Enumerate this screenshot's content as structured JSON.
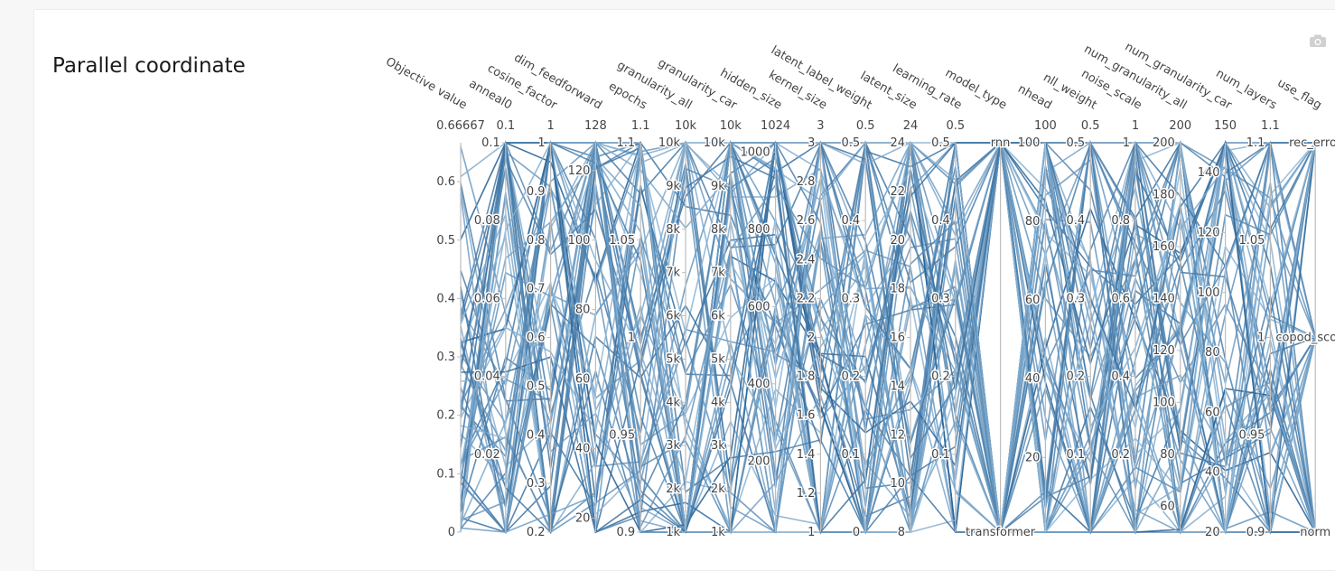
{
  "title": "Parallel coordinate",
  "toolbar": {
    "camera_icon": "camera-icon"
  },
  "colors": {
    "line_light": "#8fb8d8",
    "line_dark": "#1f5a8f",
    "axis": "#bdbdbd",
    "text": "#444444"
  },
  "chart_data": {
    "type": "parallel_coordinates",
    "title": "Parallel coordinate",
    "axes": [
      {
        "name": "Objective value",
        "max_label": "0.66667",
        "range": [
          0,
          0.66667
        ],
        "ticks": [
          0,
          0.1,
          0.2,
          0.3,
          0.4,
          0.5,
          0.6
        ]
      },
      {
        "name": "anneal0",
        "max_label": "0.1",
        "range": [
          0,
          0.1
        ],
        "ticks": [
          0.02,
          0.04,
          0.06,
          0.08,
          0.1
        ]
      },
      {
        "name": "cosine_factor",
        "max_label": "1",
        "range": [
          0.2,
          1
        ],
        "ticks": [
          0.2,
          0.3,
          0.4,
          0.5,
          0.6,
          0.7,
          0.8,
          0.9,
          1
        ]
      },
      {
        "name": "dim_feedforward",
        "max_label": "128",
        "range": [
          16,
          128
        ],
        "ticks": [
          20,
          40,
          60,
          80,
          100,
          120
        ]
      },
      {
        "name": "epochs",
        "max_label": "1.1",
        "range": [
          0.9,
          1.1
        ],
        "ticks": [
          0.9,
          0.95,
          1,
          1.05,
          1.1
        ]
      },
      {
        "name": "granularity_all",
        "max_label": "10k",
        "range": [
          1000,
          10000
        ],
        "ticks": [
          1000,
          2000,
          3000,
          4000,
          5000,
          6000,
          7000,
          8000,
          9000,
          10000
        ],
        "tick_labels": [
          "1k",
          "2k",
          "3k",
          "4k",
          "5k",
          "6k",
          "7k",
          "8k",
          "9k",
          "10k"
        ]
      },
      {
        "name": "granularity_car",
        "max_label": "10k",
        "range": [
          1000,
          10000
        ],
        "ticks": [
          1000,
          2000,
          3000,
          4000,
          5000,
          6000,
          7000,
          8000,
          9000,
          10000
        ],
        "tick_labels": [
          "1k",
          "2k",
          "3k",
          "4k",
          "5k",
          "6k",
          "7k",
          "8k",
          "9k",
          "10k"
        ]
      },
      {
        "name": "hidden_size",
        "max_label": "1024",
        "range": [
          16,
          1024
        ],
        "ticks": [
          200,
          400,
          600,
          800,
          1000
        ]
      },
      {
        "name": "kernel_size",
        "max_label": "3",
        "range": [
          1,
          3
        ],
        "ticks": [
          1,
          1.2,
          1.4,
          1.6,
          1.8,
          2,
          2.2,
          2.4,
          2.6,
          2.8,
          3
        ]
      },
      {
        "name": "latent_label_weight",
        "max_label": "0.5",
        "range": [
          0,
          0.5
        ],
        "ticks": [
          0,
          0.1,
          0.2,
          0.3,
          0.4,
          0.5
        ]
      },
      {
        "name": "latent_size",
        "max_label": "24",
        "range": [
          8,
          24
        ],
        "ticks": [
          8,
          10,
          12,
          14,
          16,
          18,
          20,
          22,
          24
        ]
      },
      {
        "name": "learning_rate",
        "max_label": "0.5",
        "range": [
          0,
          0.5
        ],
        "ticks": [
          0.1,
          0.2,
          0.3,
          0.4,
          0.5
        ]
      },
      {
        "name": "model_type",
        "max_label": "",
        "categorical": true,
        "categories": [
          "transformer",
          "rnn"
        ]
      },
      {
        "name": "nhead",
        "max_label": "100",
        "range": [
          1,
          100
        ],
        "ticks": [
          20,
          40,
          60,
          80,
          100
        ]
      },
      {
        "name": "nll_weight",
        "max_label": "0.5",
        "range": [
          0,
          0.5
        ],
        "ticks": [
          0.1,
          0.2,
          0.3,
          0.4,
          0.5
        ]
      },
      {
        "name": "noise_scale",
        "max_label": "1",
        "range": [
          0,
          1
        ],
        "ticks": [
          0.2,
          0.4,
          0.6,
          0.8,
          1
        ]
      },
      {
        "name": "num_granularity_all",
        "max_label": "200",
        "range": [
          50,
          200
        ],
        "ticks": [
          60,
          80,
          100,
          120,
          140,
          160,
          180,
          200
        ]
      },
      {
        "name": "num_granularity_car",
        "max_label": "150",
        "range": [
          20,
          150
        ],
        "ticks": [
          20,
          40,
          60,
          80,
          100,
          120,
          140
        ]
      },
      {
        "name": "num_layers",
        "max_label": "1.1",
        "range": [
          0.9,
          1.1
        ],
        "ticks": [
          0.9,
          0.95,
          1,
          1.05,
          1.1
        ],
        "tick_labels": [
          "0.9",
          "0.95",
          "1",
          "1.05",
          "1.1"
        ]
      },
      {
        "name": "use_flag",
        "max_label": "",
        "categorical": true,
        "categories": [
          "norm",
          "copod_scores",
          "rec_error"
        ]
      }
    ]
  }
}
